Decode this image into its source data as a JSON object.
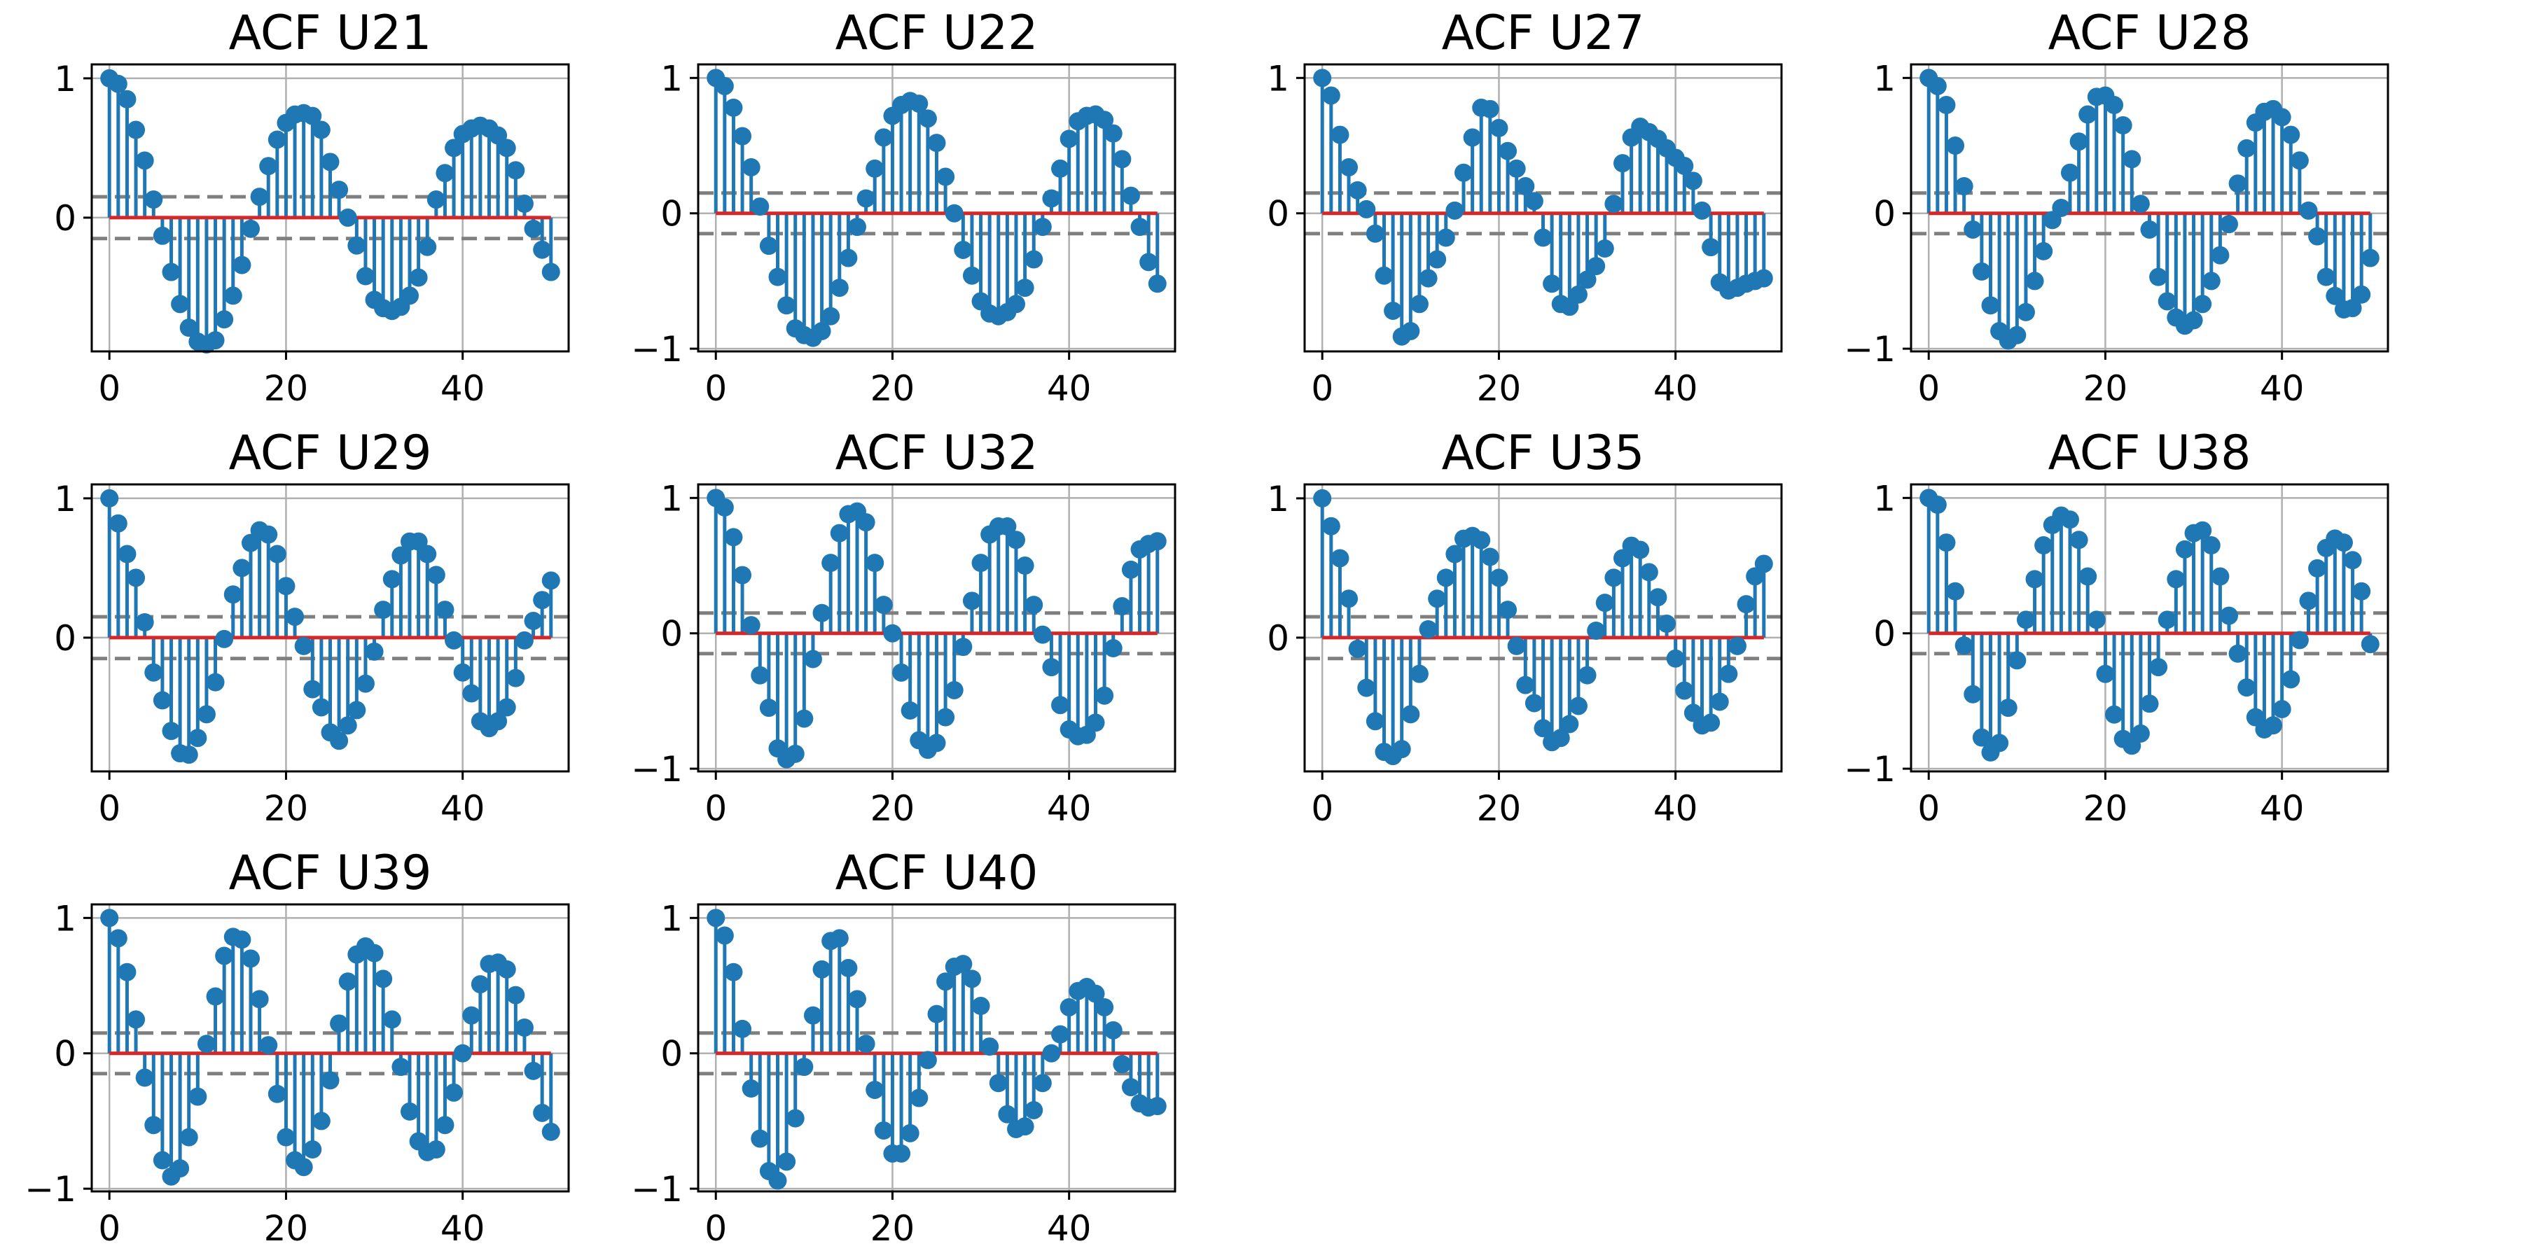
{
  "colors": {
    "stem": "#1f77b4",
    "baseline": "#d62728",
    "confidence": "#7f7f7f",
    "grid": "#b0b0b0"
  },
  "chart_data": [
    {
      "type": "stem",
      "title": "ACF U21",
      "xlim": [
        -2,
        52
      ],
      "ylim": [
        -0.96,
        1.1
      ],
      "xticks": [
        0,
        20,
        40
      ],
      "yticks": [
        0,
        1
      ],
      "ytick_labels": [
        "0",
        "1"
      ],
      "grid": true,
      "confidence": 0.15,
      "lags": [
        0,
        1,
        2,
        3,
        4,
        5,
        6,
        7,
        8,
        9,
        10,
        11,
        12,
        13,
        14,
        15,
        16,
        17,
        18,
        19,
        20,
        21,
        22,
        23,
        24,
        25,
        26,
        27,
        28,
        29,
        30,
        31,
        32,
        33,
        34,
        35,
        36,
        37,
        38,
        39,
        40,
        41,
        42,
        43,
        44,
        45,
        46,
        47,
        48,
        49,
        50
      ],
      "values": [
        1.0,
        0.96,
        0.85,
        0.63,
        0.41,
        0.13,
        -0.13,
        -0.39,
        -0.62,
        -0.79,
        -0.89,
        -0.91,
        -0.88,
        -0.73,
        -0.56,
        -0.34,
        -0.08,
        0.15,
        0.37,
        0.56,
        0.68,
        0.74,
        0.75,
        0.73,
        0.63,
        0.4,
        0.2,
        0.0,
        -0.2,
        -0.42,
        -0.59,
        -0.65,
        -0.67,
        -0.64,
        -0.56,
        -0.43,
        -0.21,
        0.13,
        0.32,
        0.5,
        0.6,
        0.64,
        0.66,
        0.64,
        0.59,
        0.5,
        0.34,
        0.1,
        -0.08,
        -0.23,
        -0.39
      ]
    },
    {
      "type": "stem",
      "title": "ACF U22",
      "xlim": [
        -2,
        52
      ],
      "ylim": [
        -1.02,
        1.1
      ],
      "xticks": [
        0,
        20,
        40
      ],
      "yticks": [
        -1,
        0,
        1
      ],
      "ytick_labels": [
        "−1",
        "0",
        "1"
      ],
      "grid": true,
      "confidence": 0.15,
      "lags": [
        0,
        1,
        2,
        3,
        4,
        5,
        6,
        7,
        8,
        9,
        10,
        11,
        12,
        13,
        14,
        15,
        16,
        17,
        18,
        19,
        20,
        21,
        22,
        23,
        24,
        25,
        26,
        27,
        28,
        29,
        30,
        31,
        32,
        33,
        34,
        35,
        36,
        37,
        38,
        39,
        40,
        41,
        42,
        43,
        44,
        45,
        46,
        47,
        48,
        49,
        50
      ],
      "values": [
        1.0,
        0.94,
        0.78,
        0.57,
        0.34,
        0.05,
        -0.24,
        -0.47,
        -0.68,
        -0.85,
        -0.9,
        -0.92,
        -0.87,
        -0.76,
        -0.55,
        -0.33,
        -0.1,
        0.11,
        0.33,
        0.56,
        0.72,
        0.8,
        0.83,
        0.81,
        0.7,
        0.52,
        0.27,
        0.0,
        -0.27,
        -0.46,
        -0.65,
        -0.74,
        -0.76,
        -0.73,
        -0.67,
        -0.55,
        -0.34,
        -0.1,
        0.11,
        0.33,
        0.55,
        0.68,
        0.72,
        0.73,
        0.69,
        0.59,
        0.4,
        0.13,
        -0.1,
        -0.36,
        -0.52
      ]
    },
    {
      "type": "stem",
      "title": "ACF U27",
      "xlim": [
        -2,
        52
      ],
      "ylim": [
        -1.02,
        1.1
      ],
      "xticks": [
        0,
        20,
        40
      ],
      "yticks": [
        0,
        1
      ],
      "ytick_labels": [
        "0",
        "1"
      ],
      "grid": true,
      "confidence": 0.15,
      "lags": [
        0,
        1,
        2,
        3,
        4,
        5,
        6,
        7,
        8,
        9,
        10,
        11,
        12,
        13,
        14,
        15,
        16,
        17,
        18,
        19,
        20,
        21,
        22,
        23,
        24,
        25,
        26,
        27,
        28,
        29,
        30,
        31,
        32,
        33,
        34,
        35,
        36,
        37,
        38,
        39,
        40,
        41,
        42,
        43,
        44,
        45,
        46,
        47,
        48,
        49,
        50
      ],
      "values": [
        1.0,
        0.87,
        0.58,
        0.34,
        0.17,
        0.03,
        -0.15,
        -0.46,
        -0.72,
        -0.91,
        -0.87,
        -0.67,
        -0.48,
        -0.34,
        -0.18,
        0.02,
        0.3,
        0.56,
        0.78,
        0.77,
        0.63,
        0.46,
        0.33,
        0.2,
        0.09,
        -0.18,
        -0.52,
        -0.67,
        -0.69,
        -0.6,
        -0.49,
        -0.39,
        -0.26,
        0.07,
        0.37,
        0.56,
        0.64,
        0.6,
        0.55,
        0.48,
        0.41,
        0.35,
        0.24,
        0.02,
        -0.25,
        -0.51,
        -0.57,
        -0.55,
        -0.52,
        -0.5,
        -0.48
      ]
    },
    {
      "type": "stem",
      "title": "ACF U28",
      "xlim": [
        -2,
        52
      ],
      "ylim": [
        -1.02,
        1.1
      ],
      "xticks": [
        0,
        20,
        40
      ],
      "yticks": [
        -1,
        0,
        1
      ],
      "ytick_labels": [
        "−1",
        "0",
        "1"
      ],
      "grid": true,
      "confidence": 0.15,
      "lags": [
        0,
        1,
        2,
        3,
        4,
        5,
        6,
        7,
        8,
        9,
        10,
        11,
        12,
        13,
        14,
        15,
        16,
        17,
        18,
        19,
        20,
        21,
        22,
        23,
        24,
        25,
        26,
        27,
        28,
        29,
        30,
        31,
        32,
        33,
        34,
        35,
        36,
        37,
        38,
        39,
        40,
        41,
        42,
        43,
        44,
        45,
        46,
        47,
        48,
        49,
        50
      ],
      "values": [
        1.0,
        0.94,
        0.8,
        0.5,
        0.2,
        -0.12,
        -0.43,
        -0.68,
        -0.87,
        -0.94,
        -0.9,
        -0.73,
        -0.5,
        -0.28,
        -0.05,
        0.04,
        0.3,
        0.53,
        0.73,
        0.86,
        0.87,
        0.8,
        0.65,
        0.4,
        0.07,
        -0.12,
        -0.47,
        -0.65,
        -0.77,
        -0.83,
        -0.79,
        -0.67,
        -0.5,
        -0.31,
        -0.08,
        0.22,
        0.48,
        0.67,
        0.75,
        0.77,
        0.71,
        0.58,
        0.39,
        0.02,
        -0.17,
        -0.47,
        -0.61,
        -0.71,
        -0.7,
        -0.6,
        -0.33
      ]
    },
    {
      "type": "stem",
      "title": "ACF U29",
      "xlim": [
        -2,
        52
      ],
      "ylim": [
        -0.96,
        1.1
      ],
      "xticks": [
        0,
        20,
        40
      ],
      "yticks": [
        0,
        1
      ],
      "ytick_labels": [
        "0",
        "1"
      ],
      "grid": true,
      "confidence": 0.15,
      "lags": [
        0,
        1,
        2,
        3,
        4,
        5,
        6,
        7,
        8,
        9,
        10,
        11,
        12,
        13,
        14,
        15,
        16,
        17,
        18,
        19,
        20,
        21,
        22,
        23,
        24,
        25,
        26,
        27,
        28,
        29,
        30,
        31,
        32,
        33,
        34,
        35,
        36,
        37,
        38,
        39,
        40,
        41,
        42,
        43,
        44,
        45,
        46,
        47,
        48,
        49,
        50
      ],
      "values": [
        1.0,
        0.82,
        0.6,
        0.43,
        0.11,
        -0.25,
        -0.45,
        -0.67,
        -0.83,
        -0.84,
        -0.72,
        -0.55,
        -0.32,
        -0.01,
        0.31,
        0.5,
        0.68,
        0.77,
        0.74,
        0.6,
        0.37,
        0.15,
        -0.06,
        -0.37,
        -0.5,
        -0.68,
        -0.74,
        -0.63,
        -0.52,
        -0.33,
        -0.1,
        0.2,
        0.42,
        0.59,
        0.69,
        0.69,
        0.6,
        0.45,
        0.2,
        -0.02,
        -0.25,
        -0.4,
        -0.6,
        -0.65,
        -0.6,
        -0.5,
        -0.29,
        -0.02,
        0.12,
        0.27,
        0.41
      ]
    },
    {
      "type": "stem",
      "title": "ACF U32",
      "xlim": [
        -2,
        52
      ],
      "ylim": [
        -1.02,
        1.1
      ],
      "xticks": [
        0,
        20,
        40
      ],
      "yticks": [
        -1,
        0,
        1
      ],
      "ytick_labels": [
        "−1",
        "0",
        "1"
      ],
      "grid": true,
      "confidence": 0.15,
      "lags": [
        0,
        1,
        2,
        3,
        4,
        5,
        6,
        7,
        8,
        9,
        10,
        11,
        12,
        13,
        14,
        15,
        16,
        17,
        18,
        19,
        20,
        21,
        22,
        23,
        24,
        25,
        26,
        27,
        28,
        29,
        30,
        31,
        32,
        33,
        34,
        35,
        36,
        37,
        38,
        39,
        40,
        41,
        42,
        43,
        44,
        45,
        46,
        47,
        48,
        49,
        50
      ],
      "values": [
        1.0,
        0.93,
        0.71,
        0.43,
        0.06,
        -0.31,
        -0.55,
        -0.85,
        -0.93,
        -0.89,
        -0.63,
        -0.19,
        0.15,
        0.52,
        0.74,
        0.88,
        0.9,
        0.82,
        0.52,
        0.21,
        0.0,
        -0.29,
        -0.57,
        -0.79,
        -0.86,
        -0.81,
        -0.62,
        -0.42,
        -0.1,
        0.24,
        0.52,
        0.73,
        0.79,
        0.79,
        0.69,
        0.5,
        0.21,
        -0.01,
        -0.25,
        -0.53,
        -0.71,
        -0.76,
        -0.75,
        -0.66,
        -0.46,
        -0.11,
        0.2,
        0.47,
        0.62,
        0.66,
        0.68
      ]
    },
    {
      "type": "stem",
      "title": "ACF U35",
      "xlim": [
        -2,
        52
      ],
      "ylim": [
        -0.96,
        1.1
      ],
      "xticks": [
        0,
        20,
        40
      ],
      "yticks": [
        0,
        1
      ],
      "ytick_labels": [
        "0",
        "1"
      ],
      "grid": true,
      "confidence": 0.15,
      "lags": [
        0,
        1,
        2,
        3,
        4,
        5,
        6,
        7,
        8,
        9,
        10,
        11,
        12,
        13,
        14,
        15,
        16,
        17,
        18,
        19,
        20,
        21,
        22,
        23,
        24,
        25,
        26,
        27,
        28,
        29,
        30,
        31,
        32,
        33,
        34,
        35,
        36,
        37,
        38,
        39,
        40,
        41,
        42,
        43,
        44,
        45,
        46,
        47,
        48,
        49,
        50
      ],
      "values": [
        1.0,
        0.8,
        0.57,
        0.28,
        -0.08,
        -0.36,
        -0.6,
        -0.82,
        -0.85,
        -0.8,
        -0.55,
        -0.26,
        0.06,
        0.28,
        0.43,
        0.6,
        0.71,
        0.73,
        0.7,
        0.58,
        0.43,
        0.2,
        -0.06,
        -0.34,
        -0.47,
        -0.65,
        -0.75,
        -0.72,
        -0.62,
        -0.49,
        -0.27,
        0.05,
        0.25,
        0.43,
        0.57,
        0.66,
        0.63,
        0.47,
        0.29,
        0.1,
        -0.15,
        -0.38,
        -0.54,
        -0.63,
        -0.61,
        -0.46,
        -0.26,
        -0.06,
        0.24,
        0.44,
        0.53
      ]
    },
    {
      "type": "stem",
      "title": "ACF U38",
      "xlim": [
        -2,
        52
      ],
      "ylim": [
        -1.02,
        1.1
      ],
      "xticks": [
        0,
        20,
        40
      ],
      "yticks": [
        -1,
        0,
        1
      ],
      "ytick_labels": [
        "−1",
        "0",
        "1"
      ],
      "grid": true,
      "confidence": 0.15,
      "lags": [
        0,
        1,
        2,
        3,
        4,
        5,
        6,
        7,
        8,
        9,
        10,
        11,
        12,
        13,
        14,
        15,
        16,
        17,
        18,
        19,
        20,
        21,
        22,
        23,
        24,
        25,
        26,
        27,
        28,
        29,
        30,
        31,
        32,
        33,
        34,
        35,
        36,
        37,
        38,
        39,
        40,
        41,
        42,
        43,
        44,
        45,
        46,
        47,
        48,
        49,
        50
      ],
      "values": [
        1.0,
        0.95,
        0.67,
        0.31,
        -0.09,
        -0.45,
        -0.77,
        -0.88,
        -0.81,
        -0.55,
        -0.2,
        0.1,
        0.4,
        0.65,
        0.8,
        0.87,
        0.84,
        0.69,
        0.42,
        0.1,
        -0.3,
        -0.6,
        -0.78,
        -0.83,
        -0.74,
        -0.52,
        -0.25,
        0.1,
        0.4,
        0.62,
        0.74,
        0.76,
        0.65,
        0.42,
        0.13,
        -0.15,
        -0.4,
        -0.62,
        -0.71,
        -0.68,
        -0.56,
        -0.34,
        -0.05,
        0.24,
        0.48,
        0.63,
        0.7,
        0.67,
        0.54,
        0.31,
        -0.08
      ]
    },
    {
      "type": "stem",
      "title": "ACF U39",
      "xlim": [
        -2,
        52
      ],
      "ylim": [
        -1.02,
        1.1
      ],
      "xticks": [
        0,
        20,
        40
      ],
      "yticks": [
        -1,
        0,
        1
      ],
      "ytick_labels": [
        "−1",
        "0",
        "1"
      ],
      "grid": true,
      "confidence": 0.15,
      "lags": [
        0,
        1,
        2,
        3,
        4,
        5,
        6,
        7,
        8,
        9,
        10,
        11,
        12,
        13,
        14,
        15,
        16,
        17,
        18,
        19,
        20,
        21,
        22,
        23,
        24,
        25,
        26,
        27,
        28,
        29,
        30,
        31,
        32,
        33,
        34,
        35,
        36,
        37,
        38,
        39,
        40,
        41,
        42,
        43,
        44,
        45,
        46,
        47,
        48,
        49,
        50
      ],
      "values": [
        1.0,
        0.85,
        0.6,
        0.25,
        -0.18,
        -0.53,
        -0.79,
        -0.91,
        -0.85,
        -0.62,
        -0.32,
        0.07,
        0.42,
        0.72,
        0.86,
        0.84,
        0.7,
        0.4,
        0.06,
        -0.3,
        -0.62,
        -0.79,
        -0.84,
        -0.71,
        -0.5,
        -0.2,
        0.22,
        0.53,
        0.73,
        0.79,
        0.74,
        0.55,
        0.25,
        -0.1,
        -0.43,
        -0.65,
        -0.73,
        -0.71,
        -0.53,
        -0.29,
        0.0,
        0.28,
        0.51,
        0.66,
        0.67,
        0.62,
        0.43,
        0.19,
        -0.13,
        -0.44,
        -0.58
      ]
    },
    {
      "type": "stem",
      "title": "ACF U40",
      "xlim": [
        -2,
        52
      ],
      "ylim": [
        -1.02,
        1.1
      ],
      "xticks": [
        0,
        20,
        40
      ],
      "yticks": [
        -1,
        0,
        1
      ],
      "ytick_labels": [
        "−1",
        "0",
        "1"
      ],
      "grid": true,
      "confidence": 0.15,
      "lags": [
        0,
        1,
        2,
        3,
        4,
        5,
        6,
        7,
        8,
        9,
        10,
        11,
        12,
        13,
        14,
        15,
        16,
        17,
        18,
        19,
        20,
        21,
        22,
        23,
        24,
        25,
        26,
        27,
        28,
        29,
        30,
        31,
        32,
        33,
        34,
        35,
        36,
        37,
        38,
        39,
        40,
        41,
        42,
        43,
        44,
        45,
        46,
        47,
        48,
        49,
        50
      ],
      "values": [
        1.0,
        0.87,
        0.6,
        0.18,
        -0.26,
        -0.63,
        -0.87,
        -0.94,
        -0.8,
        -0.48,
        -0.1,
        0.28,
        0.62,
        0.83,
        0.85,
        0.63,
        0.4,
        0.07,
        -0.27,
        -0.57,
        -0.74,
        -0.74,
        -0.59,
        -0.33,
        -0.05,
        0.29,
        0.53,
        0.64,
        0.66,
        0.55,
        0.35,
        0.05,
        -0.22,
        -0.45,
        -0.56,
        -0.54,
        -0.42,
        -0.22,
        0.0,
        0.14,
        0.34,
        0.46,
        0.49,
        0.44,
        0.34,
        0.17,
        -0.08,
        -0.25,
        -0.37,
        -0.4,
        -0.39
      ]
    }
  ]
}
